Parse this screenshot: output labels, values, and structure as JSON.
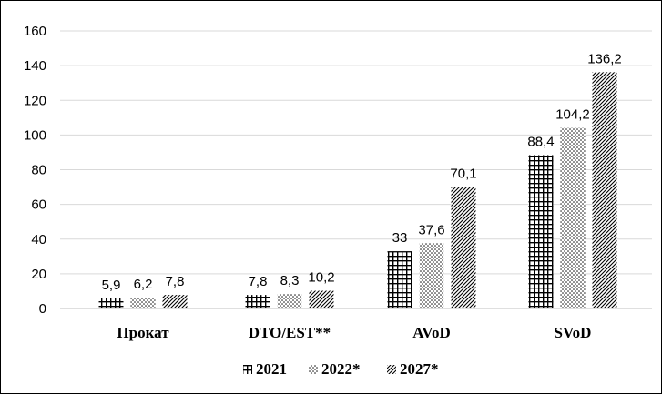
{
  "chart_data": {
    "type": "bar",
    "categories": [
      "Прокат",
      "DTO/EST**",
      "AVoD",
      "SVoD"
    ],
    "series": [
      {
        "name": "2021",
        "pattern": "grid",
        "values": [
          5.9,
          7.8,
          33,
          88.4
        ]
      },
      {
        "name": "2022*",
        "pattern": "dots",
        "values": [
          6.2,
          8.3,
          37.6,
          104.2
        ]
      },
      {
        "name": "2027*",
        "pattern": "diagonal",
        "values": [
          7.8,
          10.2,
          70.1,
          136.2
        ]
      }
    ],
    "data_labels": [
      [
        "5,9",
        "7,8",
        "33",
        "88,4"
      ],
      [
        "6,2",
        "8,3",
        "37,6",
        "104,2"
      ],
      [
        "7,8",
        "10,2",
        "70,1",
        "136,2"
      ]
    ],
    "title": "",
    "xlabel": "",
    "ylabel": "",
    "ylim": [
      0,
      160
    ],
    "yticks": [
      "0",
      "20",
      "40",
      "60",
      "80",
      "100",
      "120",
      "140",
      "160"
    ],
    "grid": "horizontal",
    "legend_position": "bottom-center",
    "colors": {
      "ink": "#000000",
      "grid": "#d9d9d9",
      "background": "#ffffff"
    }
  }
}
